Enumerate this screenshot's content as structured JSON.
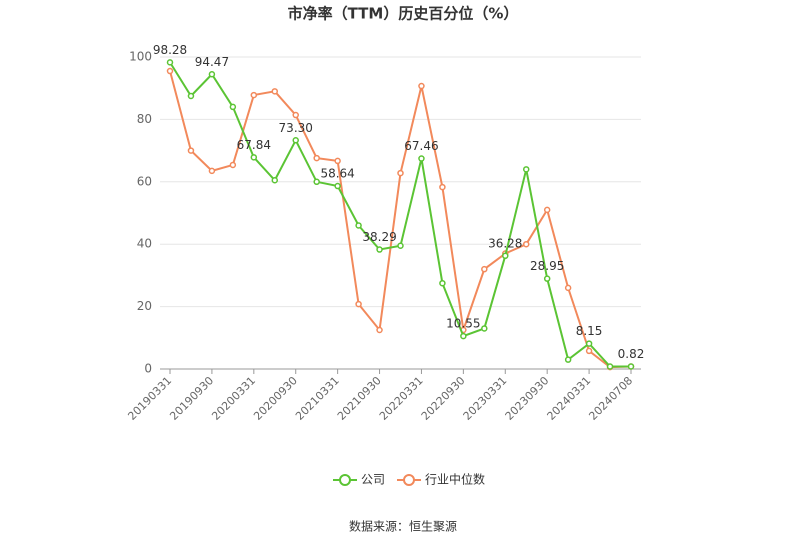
{
  "chart_data": {
    "type": "line",
    "title": "市净率（TTM）历史百分位（%）",
    "source": "数据来源：恒生聚源",
    "categories": [
      "20190331",
      null,
      "20190930",
      null,
      "20200331",
      null,
      "20200930",
      null,
      "20210331",
      null,
      "20210930",
      null,
      "20220331",
      null,
      "20220930",
      null,
      "20230331",
      null,
      "20230930",
      null,
      "20240331",
      null,
      "20240708"
    ],
    "series": [
      {
        "name": "公司",
        "color": "#5bc434",
        "values": [
          98.28,
          87.5,
          94.47,
          84,
          67.84,
          60.5,
          73.3,
          60,
          58.64,
          46,
          38.29,
          39.5,
          67.46,
          27.5,
          10.55,
          13,
          36.28,
          64,
          28.95,
          3,
          8.15,
          0.8,
          0.82
        ],
        "value_labels": [
          "98.28",
          null,
          "94.47",
          null,
          "67.84",
          null,
          "73.30",
          null,
          "58.64",
          null,
          "38.29",
          null,
          "67.46",
          null,
          "10.55",
          null,
          "36.28",
          null,
          "28.95",
          null,
          "8.15",
          null,
          "0.82"
        ]
      },
      {
        "name": "行业中位数",
        "color": "#f2895b",
        "values": [
          95.5,
          70,
          63.5,
          65.4,
          87.8,
          89,
          81.4,
          67.6,
          66.7,
          20.8,
          12.5,
          62.8,
          90.7,
          58.3,
          12.5,
          32,
          37,
          40,
          51,
          26,
          5.8,
          0.6,
          0.8
        ]
      }
    ],
    "ylim": [
      0,
      100
    ],
    "yticks": [
      0,
      20,
      40,
      60,
      80,
      100
    ],
    "grid": true,
    "legend": "bottom"
  }
}
